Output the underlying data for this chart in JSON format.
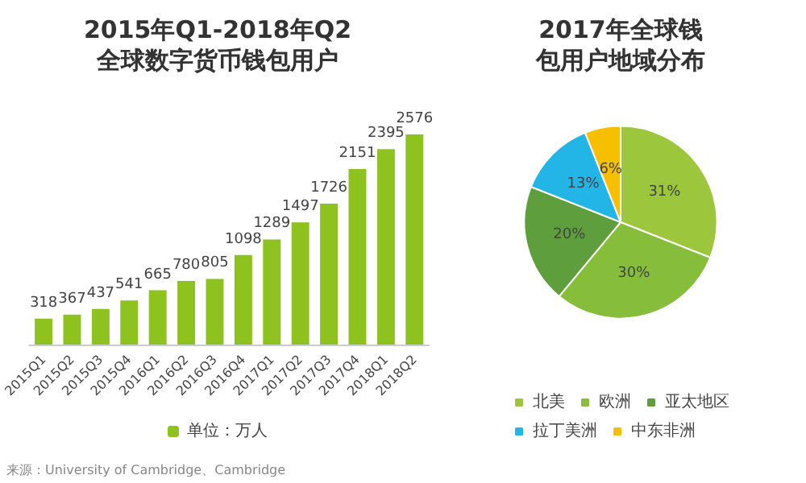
{
  "chart_data": [
    {
      "type": "bar",
      "title": "2015年Q1-2018年Q2全球数字货币钱包用户",
      "categories": [
        "2015Q1",
        "2015Q2",
        "2015Q3",
        "2015Q4",
        "2016Q1",
        "2016Q2",
        "2016Q3",
        "2016Q4",
        "2017Q1",
        "2017Q2",
        "2017Q3",
        "2017Q4",
        "2018Q1",
        "2018Q2"
      ],
      "series": [
        {
          "name": "单位：万人",
          "color": "#8dc21f",
          "values": [
            318,
            367,
            437,
            541,
            665,
            780,
            805,
            1098,
            1289,
            1497,
            1726,
            2151,
            2395,
            2576
          ]
        }
      ],
      "data_labels": true,
      "tick_labels": "x",
      "legend": "bottom",
      "annotations": [
        "来源：University of Cambridge、Cambridge"
      ]
    },
    {
      "type": "pie",
      "title": "2017年全球钱包用户地域分布",
      "categories": [
        "北美",
        "欧洲",
        "亚太地区",
        "拉丁美洲",
        "中东非洲"
      ],
      "values": [
        31,
        30,
        20,
        13,
        6
      ],
      "colors": [
        "#9cc63b",
        "#86bd3a",
        "#5e9e3c",
        "#22b5e6",
        "#f6c000"
      ],
      "value_labels": [
        "31%",
        "30%",
        "20%",
        "13%",
        "6%"
      ],
      "legend": "bottom"
    }
  ]
}
